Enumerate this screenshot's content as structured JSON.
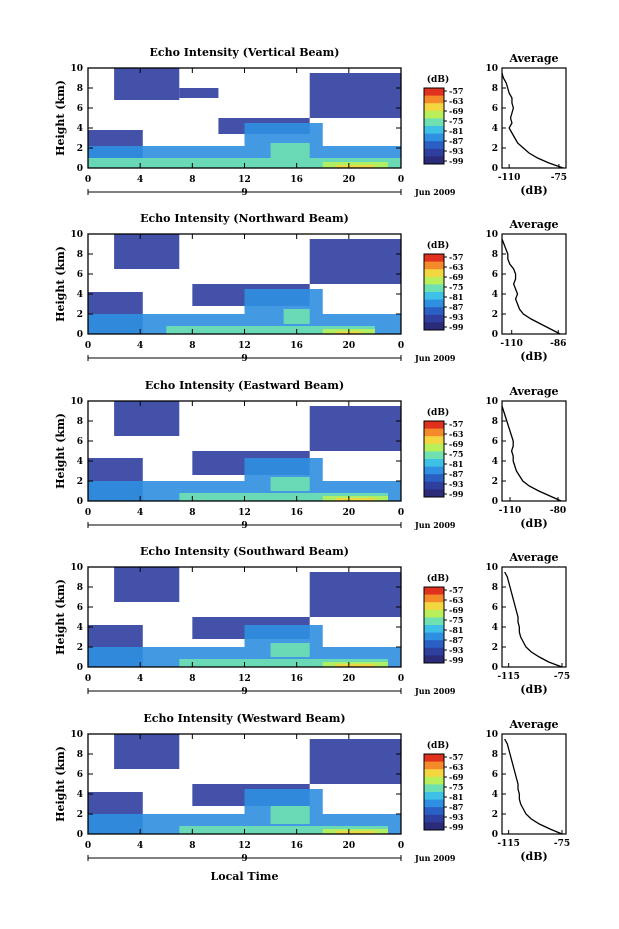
{
  "colors": {
    "scale": [
      "#2b2b7a",
      "#2f3f9e",
      "#2a5fc4",
      "#2f8fe0",
      "#3fc0e6",
      "#6fe0b0",
      "#b8ef5a",
      "#f4d640",
      "#f48a2a",
      "#e0301e"
    ],
    "shared_x_label": "Local Time"
  },
  "chart_data": [
    {
      "type": "heatmap",
      "title": "Echo Intensity (Vertical Beam)",
      "ylabel": "Height (km)",
      "xlim": [
        0,
        24
      ],
      "ylim": [
        0,
        10
      ],
      "xticks": [
        "0",
        "4",
        "8",
        "12",
        "16",
        "20",
        "0"
      ],
      "yticks": [
        "0",
        "2",
        "4",
        "6",
        "8",
        "10"
      ],
      "date_marker": "9",
      "date_label": "Jun 2009",
      "colorbar": {
        "unit": "(dB)",
        "ticks": [
          "-57",
          "-63",
          "-69",
          "-75",
          "-81",
          "-87",
          "-93",
          "-99"
        ]
      },
      "profile": {
        "title": "Average",
        "xlabel": "(dB)",
        "xticks": [
          "-110",
          "-75"
        ],
        "xlim": [
          -115,
          -70
        ],
        "heights": [
          0,
          0.5,
          1,
          1.5,
          2,
          2.5,
          3,
          3.5,
          4,
          4.5,
          5,
          5.5,
          6,
          6.5,
          7,
          7.5,
          8,
          8.5,
          9,
          9.5
        ],
        "values": [
          -72,
          -82,
          -90,
          -96,
          -100,
          -104,
          -106,
          -108,
          -110,
          -108,
          -109,
          -108,
          -107,
          -108,
          -108,
          -110,
          -111,
          -112,
          -114,
          -115
        ]
      },
      "layers": [
        {
          "level": 1,
          "regions": [
            [
              0,
              4.2,
              0,
              3.8
            ],
            [
              2,
              7,
              6.8,
              10
            ],
            [
              7,
              10,
              7,
              8
            ],
            [
              17,
              24,
              5,
              9.5
            ],
            [
              10,
              17,
              3.4,
              5
            ]
          ]
        },
        {
          "level": 3,
          "regions": [
            [
              0,
              24,
              0,
              2.2
            ],
            [
              12,
              18,
              2.2,
              4.5
            ]
          ]
        },
        {
          "level": 5,
          "regions": [
            [
              0,
              24,
              0,
              1.0
            ],
            [
              14,
              17,
              1.0,
              2.5
            ]
          ]
        },
        {
          "level": 6,
          "regions": [
            [
              18,
              23,
              0,
              0.6
            ]
          ]
        },
        {
          "level": 7,
          "regions": [
            [
              19,
              22,
              0,
              0.3
            ]
          ]
        }
      ]
    },
    {
      "type": "heatmap",
      "title": "Echo Intensity (Northward Beam)",
      "ylabel": "Height (km)",
      "xlim": [
        0,
        24
      ],
      "ylim": [
        0,
        10
      ],
      "xticks": [
        "0",
        "4",
        "8",
        "12",
        "16",
        "20",
        "0"
      ],
      "yticks": [
        "0",
        "2",
        "4",
        "6",
        "8",
        "10"
      ],
      "date_marker": "9",
      "date_label": "Jun 2009",
      "colorbar": {
        "unit": "(dB)",
        "ticks": [
          "-57",
          "-63",
          "-69",
          "-75",
          "-81",
          "-87",
          "-93",
          "-99"
        ]
      },
      "profile": {
        "title": "Average",
        "xlabel": "(dB)",
        "xticks": [
          "-110",
          "-86"
        ],
        "xlim": [
          -115,
          -82
        ],
        "heights": [
          0,
          0.5,
          1,
          1.5,
          2,
          2.5,
          3,
          3.5,
          4,
          4.5,
          5,
          5.5,
          6,
          6.5,
          7,
          7.5,
          8,
          8.5,
          9,
          9.5
        ],
        "values": [
          -85,
          -90,
          -95,
          -100,
          -104,
          -106,
          -107,
          -108,
          -107,
          -108,
          -109,
          -108,
          -108,
          -109,
          -111,
          -112,
          -112,
          -113,
          -114,
          -115
        ]
      },
      "layers": [
        {
          "level": 1,
          "regions": [
            [
              0,
              4.2,
              0,
              4.2
            ],
            [
              2,
              7,
              6.5,
              10
            ],
            [
              17,
              24,
              5,
              9.5
            ],
            [
              8,
              17,
              2.8,
              5
            ]
          ]
        },
        {
          "level": 3,
          "regions": [
            [
              0,
              24,
              0,
              2.0
            ],
            [
              12,
              18,
              2,
              4.5
            ]
          ]
        },
        {
          "level": 5,
          "regions": [
            [
              6,
              22,
              0,
              0.8
            ],
            [
              15,
              17,
              1.0,
              2.5
            ]
          ]
        },
        {
          "level": 6,
          "regions": [
            [
              18,
              22,
              0,
              0.5
            ]
          ]
        },
        {
          "level": 7,
          "regions": [
            [
              19,
              21,
              0,
              0.25
            ]
          ]
        }
      ]
    },
    {
      "type": "heatmap",
      "title": "Echo Intensity (Eastward Beam)",
      "ylabel": "Height (km)",
      "xlim": [
        0,
        24
      ],
      "ylim": [
        0,
        10
      ],
      "xticks": [
        "0",
        "4",
        "8",
        "12",
        "16",
        "20",
        "0"
      ],
      "yticks": [
        "0",
        "2",
        "4",
        "6",
        "8",
        "10"
      ],
      "date_marker": "9",
      "date_label": "Jun 2009",
      "colorbar": {
        "unit": "(dB)",
        "ticks": [
          "-57",
          "-63",
          "-69",
          "-75",
          "-81",
          "-87",
          "-93",
          "-99"
        ]
      },
      "profile": {
        "title": "Average",
        "xlabel": "(dB)",
        "xticks": [
          "-110",
          "-80"
        ],
        "xlim": [
          -115,
          -75
        ],
        "heights": [
          0,
          0.5,
          1,
          1.5,
          2,
          2.5,
          3,
          3.5,
          4,
          4.5,
          5,
          5.5,
          6,
          6.5,
          7,
          7.5,
          8,
          8.5,
          9,
          9.5
        ],
        "values": [
          -78,
          -85,
          -92,
          -98,
          -102,
          -104,
          -106,
          -107,
          -108,
          -108,
          -109,
          -108,
          -108,
          -109,
          -110,
          -111,
          -112,
          -113,
          -114,
          -115
        ]
      },
      "layers": [
        {
          "level": 1,
          "regions": [
            [
              0,
              4.2,
              0,
              4.3
            ],
            [
              2,
              7,
              6.5,
              10
            ],
            [
              17,
              24,
              5,
              9.5
            ],
            [
              8,
              17,
              2.6,
              5
            ]
          ]
        },
        {
          "level": 3,
          "regions": [
            [
              0,
              24,
              0,
              2.0
            ],
            [
              12,
              18,
              2,
              4.3
            ]
          ]
        },
        {
          "level": 5,
          "regions": [
            [
              7,
              23,
              0,
              0.8
            ],
            [
              14,
              17,
              1.0,
              2.4
            ]
          ]
        },
        {
          "level": 6,
          "regions": [
            [
              18,
              23,
              0,
              0.5
            ]
          ]
        },
        {
          "level": 7,
          "regions": [
            [
              19,
              22,
              0,
              0.3
            ]
          ]
        }
      ]
    },
    {
      "type": "heatmap",
      "title": "Echo Intensity (Southward Beam)",
      "ylabel": "Height (km)",
      "xlim": [
        0,
        24
      ],
      "ylim": [
        0,
        10
      ],
      "xticks": [
        "0",
        "4",
        "8",
        "12",
        "16",
        "20",
        "0"
      ],
      "yticks": [
        "0",
        "2",
        "4",
        "6",
        "8",
        "10"
      ],
      "date_marker": "9",
      "date_label": "Jun 2009",
      "colorbar": {
        "unit": "(dB)",
        "ticks": [
          "-57",
          "-63",
          "-69",
          "-75",
          "-81",
          "-87",
          "-93",
          "-99"
        ]
      },
      "profile": {
        "title": "Average",
        "xlabel": "(dB)",
        "xticks": [
          "-115",
          "-75"
        ],
        "xlim": [
          -120,
          -72
        ],
        "heights": [
          0,
          0.5,
          1,
          1.5,
          2,
          2.5,
          3,
          3.5,
          4,
          4.5,
          5,
          5.5,
          6,
          6.5,
          7,
          7.5,
          8,
          8.5,
          9,
          9.5
        ],
        "values": [
          -75,
          -85,
          -92,
          -98,
          -102,
          -104,
          -106,
          -107,
          -107,
          -108,
          -108,
          -109,
          -110,
          -111,
          -112,
          -113,
          -114,
          -115,
          -116,
          -118
        ]
      },
      "layers": [
        {
          "level": 1,
          "regions": [
            [
              0,
              4.2,
              0,
              4.2
            ],
            [
              2,
              7,
              6.5,
              10
            ],
            [
              17,
              24,
              5,
              9.5
            ],
            [
              8,
              17,
              2.8,
              5
            ]
          ]
        },
        {
          "level": 3,
          "regions": [
            [
              0,
              24,
              0,
              2.0
            ],
            [
              12,
              18,
              2,
              4.2
            ]
          ]
        },
        {
          "level": 5,
          "regions": [
            [
              7,
              23,
              0,
              0.8
            ],
            [
              14,
              17,
              1.0,
              2.4
            ]
          ]
        },
        {
          "level": 6,
          "regions": [
            [
              18,
              23,
              0,
              0.5
            ]
          ]
        },
        {
          "level": 7,
          "regions": [
            [
              19,
              22,
              0,
              0.3
            ]
          ]
        }
      ]
    },
    {
      "type": "heatmap",
      "title": "Echo Intensity (Westward Beam)",
      "ylabel": "Height (km)",
      "xlim": [
        0,
        24
      ],
      "ylim": [
        0,
        10
      ],
      "xticks": [
        "0",
        "4",
        "8",
        "12",
        "16",
        "20",
        "0"
      ],
      "yticks": [
        "0",
        "2",
        "4",
        "6",
        "8",
        "10"
      ],
      "date_marker": "9",
      "date_label": "Jun 2009",
      "xlabel": "Local Time",
      "colorbar": {
        "unit": "(dB)",
        "ticks": [
          "-57",
          "-63",
          "-69",
          "-75",
          "-81",
          "-87",
          "-93",
          "-99"
        ]
      },
      "profile": {
        "title": "Average",
        "xlabel": "(dB)",
        "xticks": [
          "-115",
          "-75"
        ],
        "xlim": [
          -120,
          -72
        ],
        "heights": [
          0,
          0.5,
          1,
          1.5,
          2,
          2.5,
          3,
          3.5,
          4,
          4.5,
          5,
          5.5,
          6,
          6.5,
          7,
          7.5,
          8,
          8.5,
          9,
          9.5
        ],
        "values": [
          -75,
          -84,
          -92,
          -98,
          -102,
          -104,
          -106,
          -107,
          -107,
          -108,
          -108,
          -109,
          -110,
          -111,
          -112,
          -113,
          -114,
          -115,
          -116,
          -118
        ]
      },
      "layers": [
        {
          "level": 1,
          "regions": [
            [
              0,
              4.2,
              0,
              4.2
            ],
            [
              2,
              7,
              6.5,
              10
            ],
            [
              17,
              24,
              5,
              9.5
            ],
            [
              8,
              17,
              2.8,
              5
            ]
          ]
        },
        {
          "level": 3,
          "regions": [
            [
              0,
              24,
              0,
              2.0
            ],
            [
              12,
              18,
              2,
              4.5
            ]
          ]
        },
        {
          "level": 5,
          "regions": [
            [
              7,
              23,
              0,
              0.8
            ],
            [
              14,
              17,
              1.0,
              2.8
            ]
          ]
        },
        {
          "level": 6,
          "regions": [
            [
              18,
              23,
              0,
              0.5
            ]
          ]
        },
        {
          "level": 7,
          "regions": [
            [
              19,
              22,
              0,
              0.3
            ]
          ]
        }
      ]
    }
  ]
}
